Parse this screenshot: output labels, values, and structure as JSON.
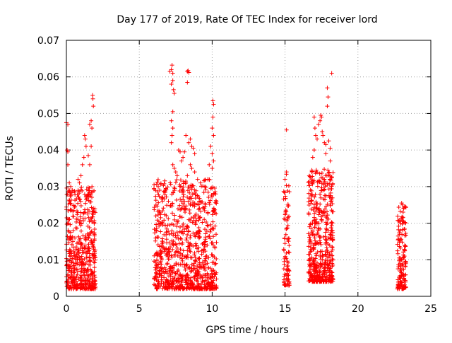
{
  "chart_data": {
    "type": "scatter",
    "title": "Day 177 of 2019, Rate Of TEC Index for receiver lord",
    "xlabel": "GPS time / hours",
    "ylabel": "ROTI / TECUs",
    "xlim": [
      0,
      25
    ],
    "ylim": [
      0,
      0.07
    ],
    "xticks": [
      0,
      5,
      10,
      15,
      20,
      25
    ],
    "xtick_labels": [
      "0",
      "5",
      "10",
      "15",
      "20",
      "25"
    ],
    "yticks": [
      0,
      0.01,
      0.02,
      0.03,
      0.04,
      0.05,
      0.06,
      0.07
    ],
    "ytick_labels": [
      "0",
      "0.01",
      "0.02",
      "0.03",
      "0.04",
      "0.05",
      "0.06",
      "0.07"
    ],
    "grid": true,
    "marker": "+",
    "marker_color": "#ff0000",
    "series": [
      {
        "name": "ROTI",
        "clusters": [
          {
            "x_range": [
              0.0,
              2.0
            ],
            "y_range": [
              0.002,
              0.03
            ],
            "count": 520
          },
          {
            "x_range": [
              6.0,
              10.3
            ],
            "y_range": [
              0.002,
              0.032
            ],
            "count": 900
          },
          {
            "x_range": [
              14.9,
              15.3
            ],
            "y_range": [
              0.003,
              0.034
            ],
            "count": 90
          },
          {
            "x_range": [
              16.6,
              18.3
            ],
            "y_range": [
              0.004,
              0.035
            ],
            "count": 500
          },
          {
            "x_range": [
              22.7,
              23.3
            ],
            "y_range": [
              0.002,
              0.025
            ],
            "count": 150
          }
        ],
        "points": [
          {
            "x": 0.0,
            "y": 0.0475
          },
          {
            "x": 0.1,
            "y": 0.047
          },
          {
            "x": 0.05,
            "y": 0.04
          },
          {
            "x": 0.1,
            "y": 0.0395
          },
          {
            "x": 0.1,
            "y": 0.036
          },
          {
            "x": 0.2,
            "y": 0.031
          },
          {
            "x": 0.3,
            "y": 0.03
          },
          {
            "x": 0.4,
            "y": 0.029
          },
          {
            "x": 0.8,
            "y": 0.032
          },
          {
            "x": 0.9,
            "y": 0.031
          },
          {
            "x": 1.0,
            "y": 0.033
          },
          {
            "x": 1.1,
            "y": 0.036
          },
          {
            "x": 1.2,
            "y": 0.038
          },
          {
            "x": 1.25,
            "y": 0.044
          },
          {
            "x": 1.3,
            "y": 0.043
          },
          {
            "x": 1.35,
            "y": 0.041
          },
          {
            "x": 1.5,
            "y": 0.0385
          },
          {
            "x": 1.6,
            "y": 0.047
          },
          {
            "x": 1.7,
            "y": 0.048
          },
          {
            "x": 1.75,
            "y": 0.046
          },
          {
            "x": 1.8,
            "y": 0.055
          },
          {
            "x": 1.82,
            "y": 0.054
          },
          {
            "x": 1.85,
            "y": 0.052
          },
          {
            "x": 1.7,
            "y": 0.041
          },
          {
            "x": 1.6,
            "y": 0.036
          },
          {
            "x": 6.3,
            "y": 0.03
          },
          {
            "x": 6.4,
            "y": 0.029
          },
          {
            "x": 6.6,
            "y": 0.027
          },
          {
            "x": 7.0,
            "y": 0.026
          },
          {
            "x": 7.1,
            "y": 0.0615
          },
          {
            "x": 7.2,
            "y": 0.062
          },
          {
            "x": 7.25,
            "y": 0.0632
          },
          {
            "x": 7.3,
            "y": 0.061
          },
          {
            "x": 7.3,
            "y": 0.059
          },
          {
            "x": 7.2,
            "y": 0.058
          },
          {
            "x": 7.35,
            "y": 0.0565
          },
          {
            "x": 7.4,
            "y": 0.0555
          },
          {
            "x": 7.3,
            "y": 0.0505
          },
          {
            "x": 7.2,
            "y": 0.048
          },
          {
            "x": 7.3,
            "y": 0.046
          },
          {
            "x": 7.25,
            "y": 0.044
          },
          {
            "x": 7.2,
            "y": 0.042
          },
          {
            "x": 7.3,
            "y": 0.036
          },
          {
            "x": 7.4,
            "y": 0.035
          },
          {
            "x": 7.5,
            "y": 0.034
          },
          {
            "x": 7.6,
            "y": 0.033
          },
          {
            "x": 7.7,
            "y": 0.04
          },
          {
            "x": 7.8,
            "y": 0.0395
          },
          {
            "x": 7.9,
            "y": 0.037
          },
          {
            "x": 8.0,
            "y": 0.038
          },
          {
            "x": 8.1,
            "y": 0.0395
          },
          {
            "x": 8.2,
            "y": 0.044
          },
          {
            "x": 8.3,
            "y": 0.0615
          },
          {
            "x": 8.35,
            "y": 0.0617
          },
          {
            "x": 8.4,
            "y": 0.0612
          },
          {
            "x": 8.3,
            "y": 0.0585
          },
          {
            "x": 8.4,
            "y": 0.042
          },
          {
            "x": 8.5,
            "y": 0.043
          },
          {
            "x": 8.6,
            "y": 0.041
          },
          {
            "x": 8.7,
            "y": 0.0405
          },
          {
            "x": 8.8,
            "y": 0.039
          },
          {
            "x": 8.5,
            "y": 0.036
          },
          {
            "x": 8.6,
            "y": 0.035
          },
          {
            "x": 8.3,
            "y": 0.033
          },
          {
            "x": 8.8,
            "y": 0.034
          },
          {
            "x": 8.2,
            "y": 0.031
          },
          {
            "x": 8.0,
            "y": 0.029
          },
          {
            "x": 9.0,
            "y": 0.032
          },
          {
            "x": 9.2,
            "y": 0.031
          },
          {
            "x": 9.5,
            "y": 0.03
          },
          {
            "x": 9.7,
            "y": 0.032
          },
          {
            "x": 9.8,
            "y": 0.036
          },
          {
            "x": 9.9,
            "y": 0.041
          },
          {
            "x": 10.0,
            "y": 0.046
          },
          {
            "x": 10.05,
            "y": 0.0535
          },
          {
            "x": 10.1,
            "y": 0.0525
          },
          {
            "x": 10.05,
            "y": 0.049
          },
          {
            "x": 10.1,
            "y": 0.044
          },
          {
            "x": 10.0,
            "y": 0.039
          },
          {
            "x": 10.1,
            "y": 0.037
          },
          {
            "x": 10.0,
            "y": 0.035
          },
          {
            "x": 15.1,
            "y": 0.0455
          },
          {
            "x": 15.1,
            "y": 0.034
          },
          {
            "x": 15.0,
            "y": 0.032
          },
          {
            "x": 17.0,
            "y": 0.049
          },
          {
            "x": 17.05,
            "y": 0.046
          },
          {
            "x": 17.1,
            "y": 0.044
          },
          {
            "x": 17.2,
            "y": 0.043
          },
          {
            "x": 17.3,
            "y": 0.047
          },
          {
            "x": 17.4,
            "y": 0.048
          },
          {
            "x": 17.5,
            "y": 0.049
          },
          {
            "x": 17.45,
            "y": 0.0495
          },
          {
            "x": 17.55,
            "y": 0.045
          },
          {
            "x": 17.6,
            "y": 0.044
          },
          {
            "x": 17.7,
            "y": 0.042
          },
          {
            "x": 17.8,
            "y": 0.0415
          },
          {
            "x": 17.9,
            "y": 0.057
          },
          {
            "x": 17.95,
            "y": 0.0545
          },
          {
            "x": 17.9,
            "y": 0.052
          },
          {
            "x": 18.0,
            "y": 0.0425
          },
          {
            "x": 18.1,
            "y": 0.0405
          },
          {
            "x": 18.2,
            "y": 0.061
          },
          {
            "x": 17.0,
            "y": 0.04
          },
          {
            "x": 16.9,
            "y": 0.038
          },
          {
            "x": 17.8,
            "y": 0.039
          },
          {
            "x": 18.1,
            "y": 0.037
          },
          {
            "x": 23.0,
            "y": 0.0255
          },
          {
            "x": 23.05,
            "y": 0.025
          },
          {
            "x": 23.1,
            "y": 0.023
          }
        ]
      }
    ]
  }
}
